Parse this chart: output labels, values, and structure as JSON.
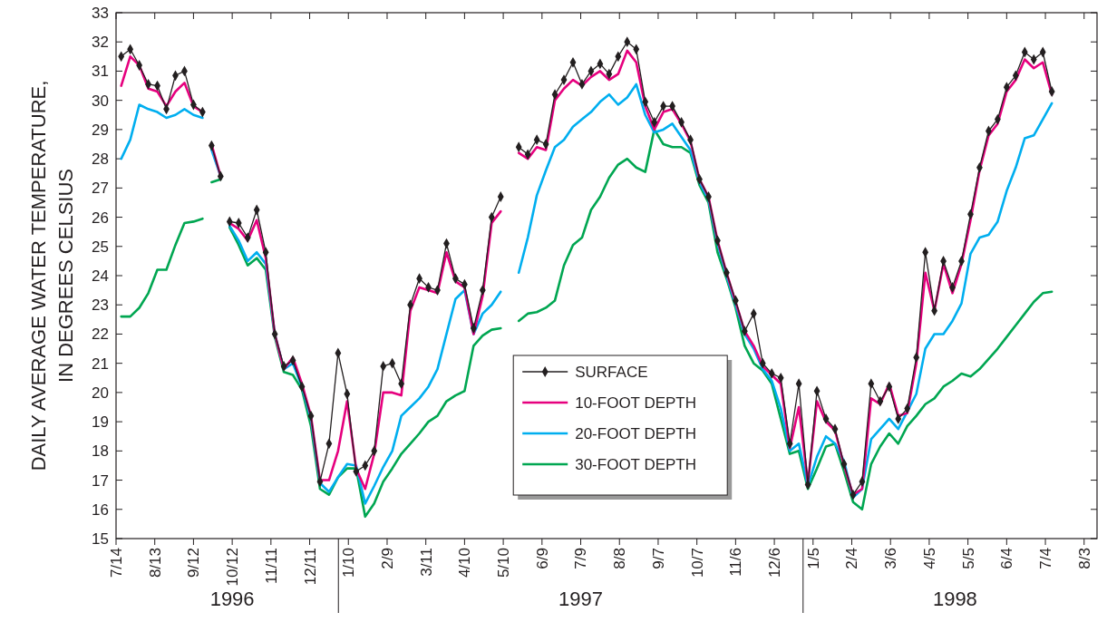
{
  "chart_data": {
    "type": "line",
    "ylabel": "DAILY AVERAGE WATER TEMPERATURE,\nIN DEGREES CELSIUS",
    "annotations": [
      "1996",
      "1997",
      "1998"
    ],
    "x": [
      "1996-07-18",
      "1996-07-25",
      "1996-08-01",
      "1996-08-08",
      "1996-08-15",
      "1996-08-22",
      "1996-08-29",
      "1996-09-05",
      "1996-09-12",
      "1996-09-19",
      "1996-09-22",
      "1996-09-26",
      "1996-10-03",
      "1996-10-07",
      "1996-10-10",
      "1996-10-17",
      "1996-10-24",
      "1996-10-31",
      "1996-11-07",
      "1996-11-14",
      "1996-11-21",
      "1996-11-28",
      "1996-12-05",
      "1996-12-12",
      "1996-12-19",
      "1996-12-26",
      "1997-01-02",
      "1997-01-09",
      "1997-01-16",
      "1997-01-23",
      "1997-01-30",
      "1997-02-06",
      "1997-02-13",
      "1997-02-20",
      "1997-02-27",
      "1997-03-06",
      "1997-03-13",
      "1997-03-20",
      "1997-03-27",
      "1997-04-03",
      "1997-04-10",
      "1997-04-17",
      "1997-04-24",
      "1997-05-01",
      "1997-05-08",
      "1997-05-15",
      "1997-05-22",
      "1997-05-29",
      "1997-06-05",
      "1997-06-12",
      "1997-06-19",
      "1997-06-26",
      "1997-07-03",
      "1997-07-10",
      "1997-07-17",
      "1997-07-24",
      "1997-07-31",
      "1997-08-07",
      "1997-08-14",
      "1997-08-21",
      "1997-08-28",
      "1997-09-04",
      "1997-09-11",
      "1997-09-18",
      "1997-09-25",
      "1997-10-02",
      "1997-10-09",
      "1997-10-16",
      "1997-10-23",
      "1997-10-30",
      "1997-11-06",
      "1997-11-13",
      "1997-11-20",
      "1997-11-27",
      "1997-12-04",
      "1997-12-11",
      "1997-12-18",
      "1997-12-25",
      "1998-01-01",
      "1998-01-08",
      "1998-01-15",
      "1998-01-22",
      "1998-01-29",
      "1998-02-05",
      "1998-02-12",
      "1998-02-19",
      "1998-02-26",
      "1998-03-05",
      "1998-03-12",
      "1998-03-19",
      "1998-03-26",
      "1998-04-02",
      "1998-04-09",
      "1998-04-16",
      "1998-04-23",
      "1998-04-30",
      "1998-05-07",
      "1998-05-14",
      "1998-05-21",
      "1998-05-28",
      "1998-06-04",
      "1998-06-11",
      "1998-06-18",
      "1998-06-25",
      "1998-07-02",
      "1998-07-09"
    ],
    "series": [
      {
        "name": "SURFACE",
        "color": "#231f20",
        "marker": "diamond",
        "values": [
          31.5,
          31.75,
          31.2,
          30.55,
          30.5,
          29.7,
          30.85,
          31.0,
          29.85,
          29.6,
          null,
          28.45,
          27.4,
          null,
          25.85,
          25.8,
          25.3,
          26.25,
          24.8,
          22.0,
          20.9,
          21.1,
          20.2,
          19.2,
          16.95,
          18.25,
          21.35,
          19.95,
          17.3,
          17.5,
          18.0,
          20.9,
          21.0,
          20.3,
          23.0,
          23.9,
          23.6,
          23.5,
          25.1,
          23.9,
          23.7,
          22.2,
          23.5,
          26.0,
          26.7,
          null,
          28.4,
          28.15,
          28.65,
          28.5,
          30.2,
          30.7,
          31.3,
          30.55,
          31.0,
          31.25,
          30.9,
          31.5,
          32.0,
          31.75,
          29.95,
          29.25,
          29.8,
          29.8,
          29.25,
          28.65,
          27.3,
          26.7,
          25.2,
          24.1,
          23.15,
          22.1,
          22.7,
          21.0,
          20.65,
          20.5,
          18.25,
          20.3,
          16.85,
          20.05,
          19.1,
          18.75,
          17.55,
          16.5,
          16.95,
          20.3,
          19.7,
          20.2,
          19.1,
          19.45,
          21.2,
          24.8,
          22.8,
          24.5,
          23.6,
          24.5,
          26.1,
          27.7,
          28.95,
          29.35,
          30.45,
          30.85,
          31.65,
          31.4,
          31.65,
          30.3
        ]
      },
      {
        "name": "10-FOOT DEPTH",
        "color": "#e6007e",
        "values": [
          30.5,
          31.5,
          31.2,
          30.4,
          30.3,
          29.8,
          30.3,
          30.6,
          29.8,
          29.6,
          null,
          28.5,
          27.4,
          null,
          25.8,
          25.6,
          25.2,
          25.9,
          24.6,
          22.0,
          20.8,
          21.2,
          20.3,
          19.2,
          17.0,
          17.0,
          18.0,
          19.7,
          17.4,
          16.7,
          17.9,
          20.0,
          20.0,
          19.9,
          22.8,
          23.6,
          23.5,
          23.4,
          24.8,
          23.8,
          23.6,
          22.0,
          23.3,
          25.8,
          26.2,
          null,
          28.2,
          28.0,
          28.4,
          28.3,
          30.0,
          30.4,
          30.7,
          30.5,
          30.8,
          31.0,
          30.7,
          30.9,
          31.7,
          31.3,
          29.8,
          29.0,
          29.6,
          29.7,
          29.2,
          28.6,
          27.3,
          26.7,
          25.2,
          24.1,
          23.1,
          22.1,
          21.6,
          20.9,
          20.6,
          20.3,
          18.1,
          19.5,
          16.9,
          19.7,
          19.0,
          18.7,
          17.5,
          16.5,
          16.7,
          19.8,
          19.6,
          20.3,
          19.2,
          19.3,
          21.0,
          24.1,
          22.8,
          24.4,
          23.4,
          24.4,
          25.9,
          27.6,
          28.8,
          29.2,
          30.3,
          30.7,
          31.4,
          31.1,
          31.3,
          30.2
        ]
      },
      {
        "name": "20-FOOT DEPTH",
        "color": "#00aeef",
        "values": [
          28.0,
          28.65,
          29.85,
          29.7,
          29.6,
          29.4,
          29.5,
          29.7,
          29.5,
          29.4,
          null,
          28.3,
          27.4,
          null,
          25.7,
          25.2,
          24.5,
          24.8,
          24.4,
          22.0,
          20.8,
          21.0,
          20.2,
          19.1,
          16.9,
          16.6,
          17.1,
          17.55,
          17.5,
          16.2,
          16.8,
          17.45,
          18.0,
          19.2,
          19.5,
          19.8,
          20.2,
          20.8,
          22.0,
          23.2,
          23.5,
          22.0,
          22.7,
          23.0,
          23.45,
          null,
          24.1,
          25.3,
          26.75,
          27.6,
          28.4,
          28.65,
          29.1,
          29.35,
          29.6,
          29.95,
          30.2,
          29.85,
          30.1,
          30.55,
          29.5,
          28.9,
          29.0,
          29.2,
          28.75,
          28.3,
          27.2,
          26.6,
          25.1,
          24.0,
          23.0,
          22.0,
          21.5,
          20.8,
          20.4,
          19.45,
          18.0,
          18.25,
          16.8,
          17.8,
          18.5,
          18.25,
          17.65,
          16.4,
          16.7,
          18.4,
          18.75,
          19.1,
          18.75,
          19.35,
          19.95,
          21.5,
          22.0,
          22.0,
          22.45,
          23.05,
          24.75,
          25.3,
          25.4,
          25.85,
          26.9,
          27.7,
          28.7,
          28.8,
          29.35,
          29.9
        ]
      },
      {
        "name": "30-FOOT DEPTH",
        "color": "#00a651",
        "values": [
          22.6,
          22.6,
          22.9,
          23.4,
          24.2,
          24.2,
          25.05,
          25.8,
          25.85,
          25.95,
          null,
          27.2,
          27.3,
          null,
          25.65,
          25.05,
          24.35,
          24.6,
          24.2,
          21.9,
          20.7,
          20.6,
          20.1,
          18.85,
          16.7,
          16.5,
          17.1,
          17.4,
          17.4,
          15.75,
          16.2,
          16.95,
          17.4,
          17.9,
          18.25,
          18.6,
          19.0,
          19.2,
          19.7,
          19.9,
          20.05,
          21.6,
          21.95,
          22.15,
          22.2,
          null,
          22.45,
          22.7,
          22.75,
          22.9,
          23.15,
          24.35,
          25.05,
          25.3,
          26.25,
          26.7,
          27.35,
          27.8,
          28.0,
          27.7,
          27.55,
          29.0,
          28.5,
          28.4,
          28.4,
          28.2,
          27.1,
          26.5,
          24.8,
          23.9,
          22.9,
          21.6,
          21.0,
          20.75,
          20.3,
          19.1,
          17.9,
          18.0,
          16.7,
          17.4,
          18.15,
          18.25,
          17.3,
          16.25,
          16.0,
          17.55,
          18.15,
          18.6,
          18.25,
          18.85,
          19.2,
          19.6,
          19.8,
          20.2,
          20.4,
          20.65,
          20.55,
          20.8,
          21.15,
          21.5,
          21.9,
          22.3,
          22.7,
          23.1,
          23.4,
          23.45
        ]
      }
    ],
    "xlim": [
      "1996-07-14",
      "1998-08-13"
    ],
    "xticks": [
      {
        "value": "1996-07-14",
        "label": "7/14"
      },
      {
        "value": "1996-08-13",
        "label": "8/13"
      },
      {
        "value": "1996-09-12",
        "label": "9/12"
      },
      {
        "value": "1996-10-12",
        "label": "10/12"
      },
      {
        "value": "1996-11-11",
        "label": "11/11"
      },
      {
        "value": "1996-12-11",
        "label": "12/11"
      },
      {
        "value": "1997-01-10",
        "label": "1/10"
      },
      {
        "value": "1997-02-09",
        "label": "2/9"
      },
      {
        "value": "1997-03-11",
        "label": "3/11"
      },
      {
        "value": "1997-04-10",
        "label": "4/10"
      },
      {
        "value": "1997-05-10",
        "label": "5/10"
      },
      {
        "value": "1997-06-09",
        "label": "6/9"
      },
      {
        "value": "1997-07-09",
        "label": "7/9"
      },
      {
        "value": "1997-08-08",
        "label": "8/8"
      },
      {
        "value": "1997-09-07",
        "label": "9/7"
      },
      {
        "value": "1997-10-07",
        "label": "10/7"
      },
      {
        "value": "1997-11-06",
        "label": "11/6"
      },
      {
        "value": "1997-12-06",
        "label": "12/6"
      },
      {
        "value": "1998-01-05",
        "label": "1/5"
      },
      {
        "value": "1998-02-04",
        "label": "2/4"
      },
      {
        "value": "1998-03-06",
        "label": "3/6"
      },
      {
        "value": "1998-04-05",
        "label": "4/5"
      },
      {
        "value": "1998-05-05",
        "label": "5/5"
      },
      {
        "value": "1998-06-04",
        "label": "6/4"
      },
      {
        "value": "1998-07-04",
        "label": "7/4"
      },
      {
        "value": "1998-08-03",
        "label": "8/3"
      }
    ],
    "ylim": [
      15,
      33
    ],
    "yticks": [
      15,
      16,
      17,
      18,
      19,
      20,
      21,
      22,
      23,
      24,
      25,
      26,
      27,
      28,
      29,
      30,
      31,
      32,
      33
    ],
    "legend": "bottom",
    "line_style": "solid"
  }
}
